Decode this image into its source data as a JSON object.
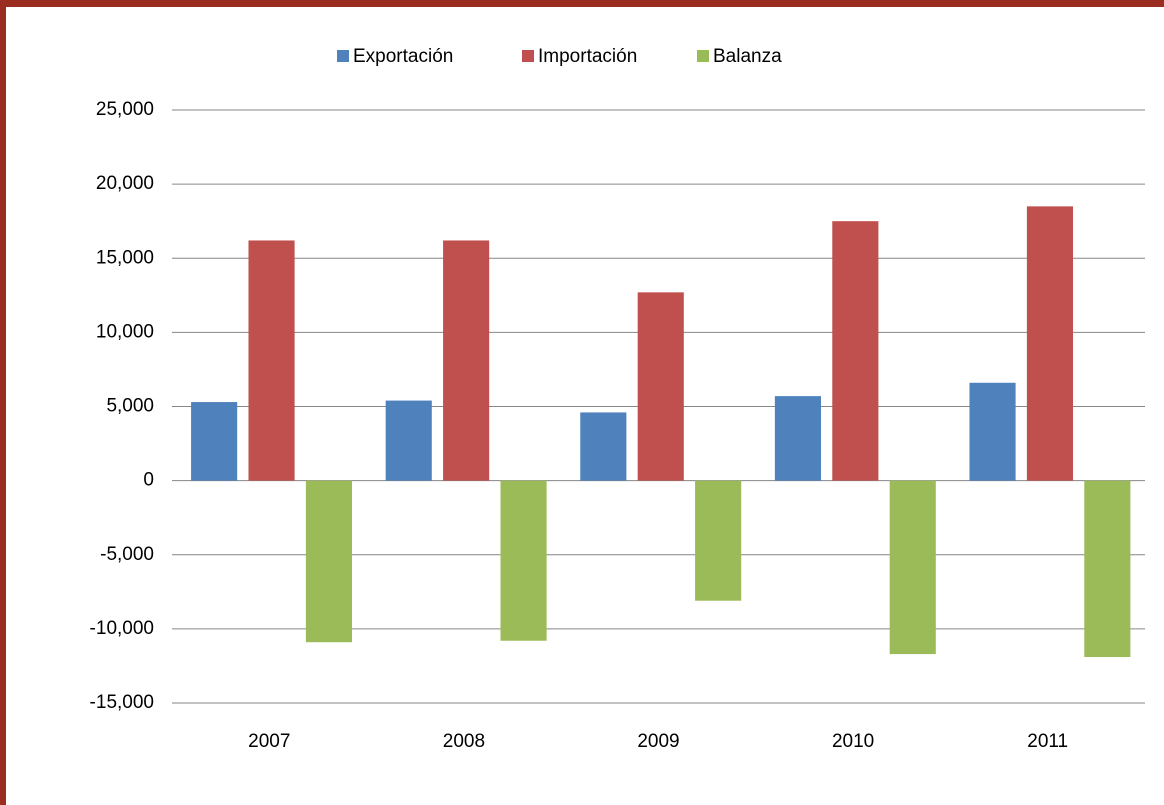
{
  "chart_data": {
    "type": "bar",
    "categories": [
      "2007",
      "2008",
      "2009",
      "2010",
      "2011"
    ],
    "series": [
      {
        "name": "Exportación",
        "color": "#4f81bd",
        "values": [
          5300,
          5400,
          4600,
          5700,
          6600
        ]
      },
      {
        "name": "Importación",
        "color": "#c0504d",
        "values": [
          16200,
          16200,
          12700,
          17500,
          18500
        ]
      },
      {
        "name": "Balanza",
        "color": "#9bbb59",
        "values": [
          -10900,
          -10800,
          -8100,
          -11700,
          -11900
        ]
      }
    ],
    "ylim": [
      -15000,
      25000
    ],
    "yticks": [
      {
        "value": -15000,
        "label": "-15,000"
      },
      {
        "value": -10000,
        "label": "-10,000"
      },
      {
        "value": -5000,
        "label": "-5,000"
      },
      0,
      {
        "value": 5000,
        "label": "5,000"
      },
      {
        "value": 10000,
        "label": "10,000"
      },
      {
        "value": 15000,
        "label": "15,000"
      },
      {
        "value": 20000,
        "label": "20,000"
      },
      {
        "value": 25000,
        "label": "25,000"
      }
    ],
    "grid": true,
    "legend": "top"
  }
}
